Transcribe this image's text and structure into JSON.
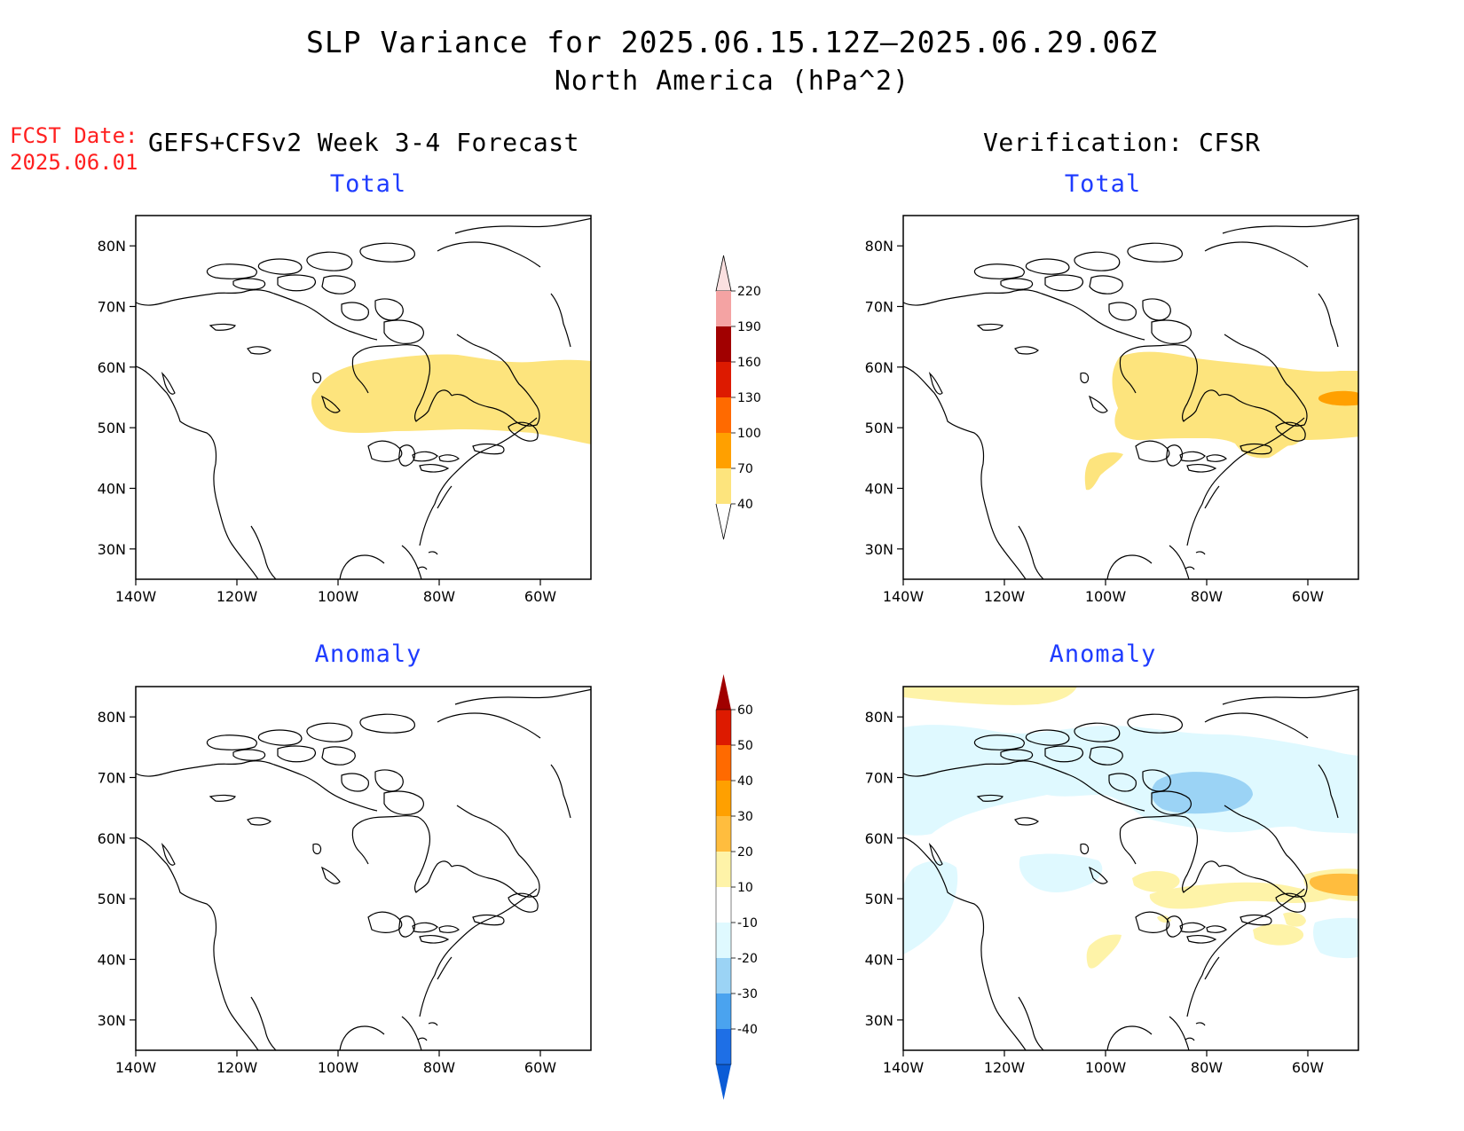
{
  "title": {
    "line1": "SLP Variance for 2025.06.15.12Z–2025.06.29.06Z",
    "line2": "North America (hPa^2)"
  },
  "forecast": {
    "date_label": "FCST Date:",
    "date_value": "2025.06.01",
    "model_header": "GEFS+CFSv2 Week 3-4 Forecast"
  },
  "verification": {
    "header": "Verification: CFSR"
  },
  "panels": {
    "total": "Total",
    "anomaly": "Anomaly"
  },
  "axes": {
    "lat_ticks": [
      "80N",
      "70N",
      "60N",
      "50N",
      "40N",
      "30N"
    ],
    "lon_ticks": [
      "140W",
      "120W",
      "100W",
      "80W",
      "60W"
    ],
    "lat_range": [
      25,
      85
    ],
    "lon_range": [
      -140,
      -50
    ]
  },
  "colorbar_total": {
    "levels": [
      "220",
      "190",
      "160",
      "130",
      "100",
      "70",
      "40"
    ],
    "colors": [
      "#fbe0e0",
      "#f4a3a3",
      "#a10000",
      "#dd1a00",
      "#ff6a00",
      "#ffa000",
      "#fde47d"
    ]
  },
  "colorbar_anomaly": {
    "levels": [
      "60",
      "50",
      "40",
      "30",
      "20",
      "10",
      "-10",
      "-20",
      "-30",
      "-40"
    ],
    "colors": [
      "#a00000",
      "#dd1a00",
      "#ff6a00",
      "#ffa000",
      "#ffbd3e",
      "#fef3a8",
      "#ffffff",
      "#dff9ff",
      "#9bd3f5",
      "#4aa3ef",
      "#1e6fe6",
      "#0b5cd6"
    ]
  },
  "colors": {
    "panel_title": "#1f3cff",
    "fcst_date": "#ff2020"
  }
}
